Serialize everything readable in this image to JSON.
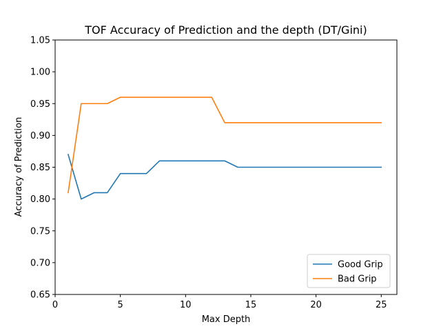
{
  "chart_data": {
    "type": "line",
    "title": "TOF Accuracy of Prediction and the depth (DT/Gini)",
    "xlabel": "Max Depth",
    "ylabel": "Accuracy of Prediction",
    "xlim": [
      0,
      26.2
    ],
    "ylim": [
      0.65,
      1.05
    ],
    "xticks": [
      0,
      5,
      10,
      15,
      20,
      25
    ],
    "xtick_labels": [
      "0",
      "5",
      "10",
      "15",
      "20",
      "25"
    ],
    "yticks": [
      0.65,
      0.7,
      0.75,
      0.8,
      0.85,
      0.9,
      0.95,
      1.0,
      1.05
    ],
    "ytick_labels": [
      "0.65",
      "0.70",
      "0.75",
      "0.80",
      "0.85",
      "0.90",
      "0.95",
      "1.00",
      "1.05"
    ],
    "grid": false,
    "legend_position": "lower-right",
    "x": [
      1,
      2,
      3,
      4,
      5,
      6,
      7,
      8,
      9,
      10,
      11,
      12,
      13,
      14,
      15,
      16,
      17,
      18,
      19,
      20,
      21,
      22,
      23,
      24,
      25
    ],
    "series": [
      {
        "name": "Good Grip",
        "color": "#1f77b4",
        "values": [
          0.87,
          0.8,
          0.81,
          0.81,
          0.84,
          0.84,
          0.84,
          0.86,
          0.86,
          0.86,
          0.86,
          0.86,
          0.86,
          0.85,
          0.85,
          0.85,
          0.85,
          0.85,
          0.85,
          0.85,
          0.85,
          0.85,
          0.85,
          0.85,
          0.85
        ]
      },
      {
        "name": "Bad Grip",
        "color": "#ff7f0e",
        "values": [
          0.81,
          0.95,
          0.95,
          0.95,
          0.96,
          0.96,
          0.96,
          0.96,
          0.96,
          0.96,
          0.96,
          0.96,
          0.92,
          0.92,
          0.92,
          0.92,
          0.92,
          0.92,
          0.92,
          0.92,
          0.92,
          0.92,
          0.92,
          0.92,
          0.92
        ]
      }
    ]
  }
}
